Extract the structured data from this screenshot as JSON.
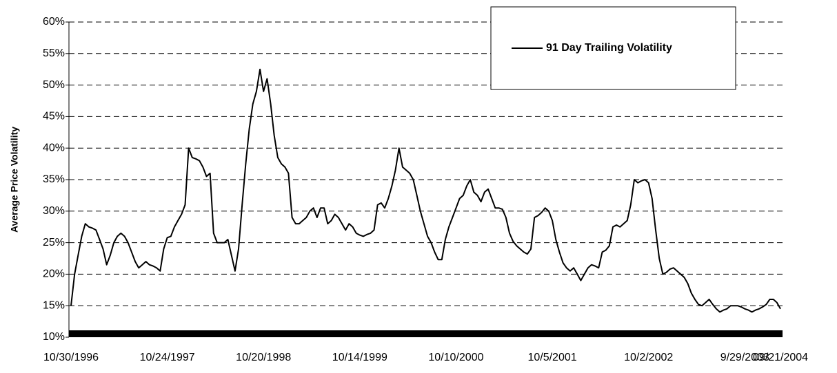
{
  "chart_data": {
    "type": "line",
    "y_label": "Average Price Volatility",
    "ylim": [
      10,
      60
    ],
    "yticks": [
      {
        "value": 10,
        "label": "10%"
      },
      {
        "value": 15,
        "label": "15%"
      },
      {
        "value": 20,
        "label": "20%"
      },
      {
        "value": 25,
        "label": "25%"
      },
      {
        "value": 30,
        "label": "30%"
      },
      {
        "value": 35,
        "label": "35%"
      },
      {
        "value": 40,
        "label": "40%"
      },
      {
        "value": 45,
        "label": "45%"
      },
      {
        "value": 50,
        "label": "50%"
      },
      {
        "value": 55,
        "label": "55%"
      },
      {
        "value": 60,
        "label": "60%"
      }
    ],
    "grid": true,
    "legend_position": "top-right",
    "categories": [
      "10/30/1996",
      null,
      null,
      null,
      null,
      null,
      null,
      null,
      null,
      null,
      null,
      null,
      null,
      null,
      null,
      null,
      null,
      null,
      null,
      null,
      null,
      null,
      null,
      null,
      null,
      null,
      null,
      "10/24/1997",
      null,
      null,
      null,
      null,
      null,
      null,
      null,
      null,
      null,
      null,
      null,
      null,
      null,
      null,
      null,
      null,
      null,
      null,
      null,
      null,
      null,
      null,
      null,
      null,
      null,
      null,
      "10/20/1998",
      null,
      null,
      null,
      null,
      null,
      null,
      null,
      null,
      null,
      null,
      null,
      null,
      null,
      null,
      null,
      null,
      null,
      null,
      null,
      null,
      null,
      null,
      null,
      null,
      null,
      null,
      "10/14/1999",
      null,
      null,
      null,
      null,
      null,
      null,
      null,
      null,
      null,
      null,
      null,
      null,
      null,
      null,
      null,
      null,
      null,
      null,
      null,
      null,
      null,
      null,
      null,
      null,
      null,
      null,
      "10/10/2000",
      null,
      null,
      null,
      null,
      null,
      null,
      null,
      null,
      null,
      null,
      null,
      null,
      null,
      null,
      null,
      null,
      null,
      null,
      null,
      null,
      null,
      null,
      null,
      null,
      null,
      null,
      "10/5/2001",
      null,
      null,
      null,
      null,
      null,
      null,
      null,
      null,
      null,
      null,
      null,
      null,
      null,
      null,
      null,
      null,
      null,
      null,
      null,
      null,
      null,
      null,
      null,
      null,
      null,
      null,
      "10/2/2002",
      null,
      null,
      null,
      null,
      null,
      null,
      null,
      null,
      null,
      null,
      null,
      null,
      null,
      null,
      null,
      null,
      null,
      null,
      null,
      null,
      null,
      null,
      null,
      null,
      null,
      null,
      "9/29/2003",
      null,
      null,
      null,
      null,
      null,
      null,
      null,
      null,
      null,
      "09/21/2004"
    ],
    "series": [
      {
        "name": "91 Day Trailing Volatility",
        "color": "#000000",
        "values": [
          15,
          20,
          23,
          26,
          28,
          27.5,
          27.3,
          27,
          25.5,
          24,
          21.5,
          23,
          25,
          26,
          26.5,
          26,
          25,
          23.5,
          22,
          21,
          21.5,
          22,
          21.5,
          21.3,
          21,
          20.5,
          24,
          25.8,
          26,
          27.5,
          28.5,
          29.5,
          31,
          40,
          38.5,
          38.3,
          38,
          37,
          35.5,
          36,
          26.5,
          25,
          25,
          25,
          25.5,
          23,
          20.5,
          24,
          31,
          37.5,
          43,
          47,
          49,
          52.5,
          49,
          51,
          47,
          42,
          38.5,
          37.5,
          37,
          36,
          29,
          28,
          28,
          28.5,
          29,
          30,
          30.5,
          29,
          30.5,
          30.5,
          28,
          28.5,
          29.5,
          29,
          28,
          27,
          28,
          27.5,
          26.5,
          26.2,
          26,
          26.3,
          26.5,
          27,
          31,
          31.3,
          30.5,
          32,
          34,
          36.5,
          40,
          37,
          36.5,
          36,
          35,
          32.5,
          30,
          28,
          26,
          25,
          23.5,
          22.3,
          22.3,
          25.5,
          27.5,
          29,
          30.5,
          32,
          32.5,
          34,
          35,
          33,
          32.5,
          31.5,
          33,
          33.5,
          32,
          30.5,
          30.5,
          30.3,
          29,
          26.5,
          25.2,
          24.5,
          24,
          23.5,
          23.2,
          24,
          29,
          29.3,
          29.8,
          30.5,
          30,
          28.5,
          25.5,
          23.5,
          21.8,
          21,
          20.5,
          21,
          20,
          19,
          20,
          21,
          21.5,
          21.3,
          21,
          23.5,
          23.8,
          24.5,
          27.5,
          27.8,
          27.5,
          28,
          28.5,
          31,
          35,
          34.5,
          34.8,
          35,
          34.5,
          32,
          27,
          22.5,
          20,
          20.3,
          20.8,
          21,
          20.5,
          20,
          19.5,
          18.5,
          17,
          16,
          15.2,
          15,
          15.5,
          16,
          15.2,
          14.5,
          14,
          14.3,
          14.5,
          15,
          15,
          15,
          14.8,
          14.5,
          14.3,
          14,
          14.3,
          14.5,
          14.8,
          15.2,
          16,
          16,
          15.5,
          14.5
        ]
      }
    ]
  }
}
